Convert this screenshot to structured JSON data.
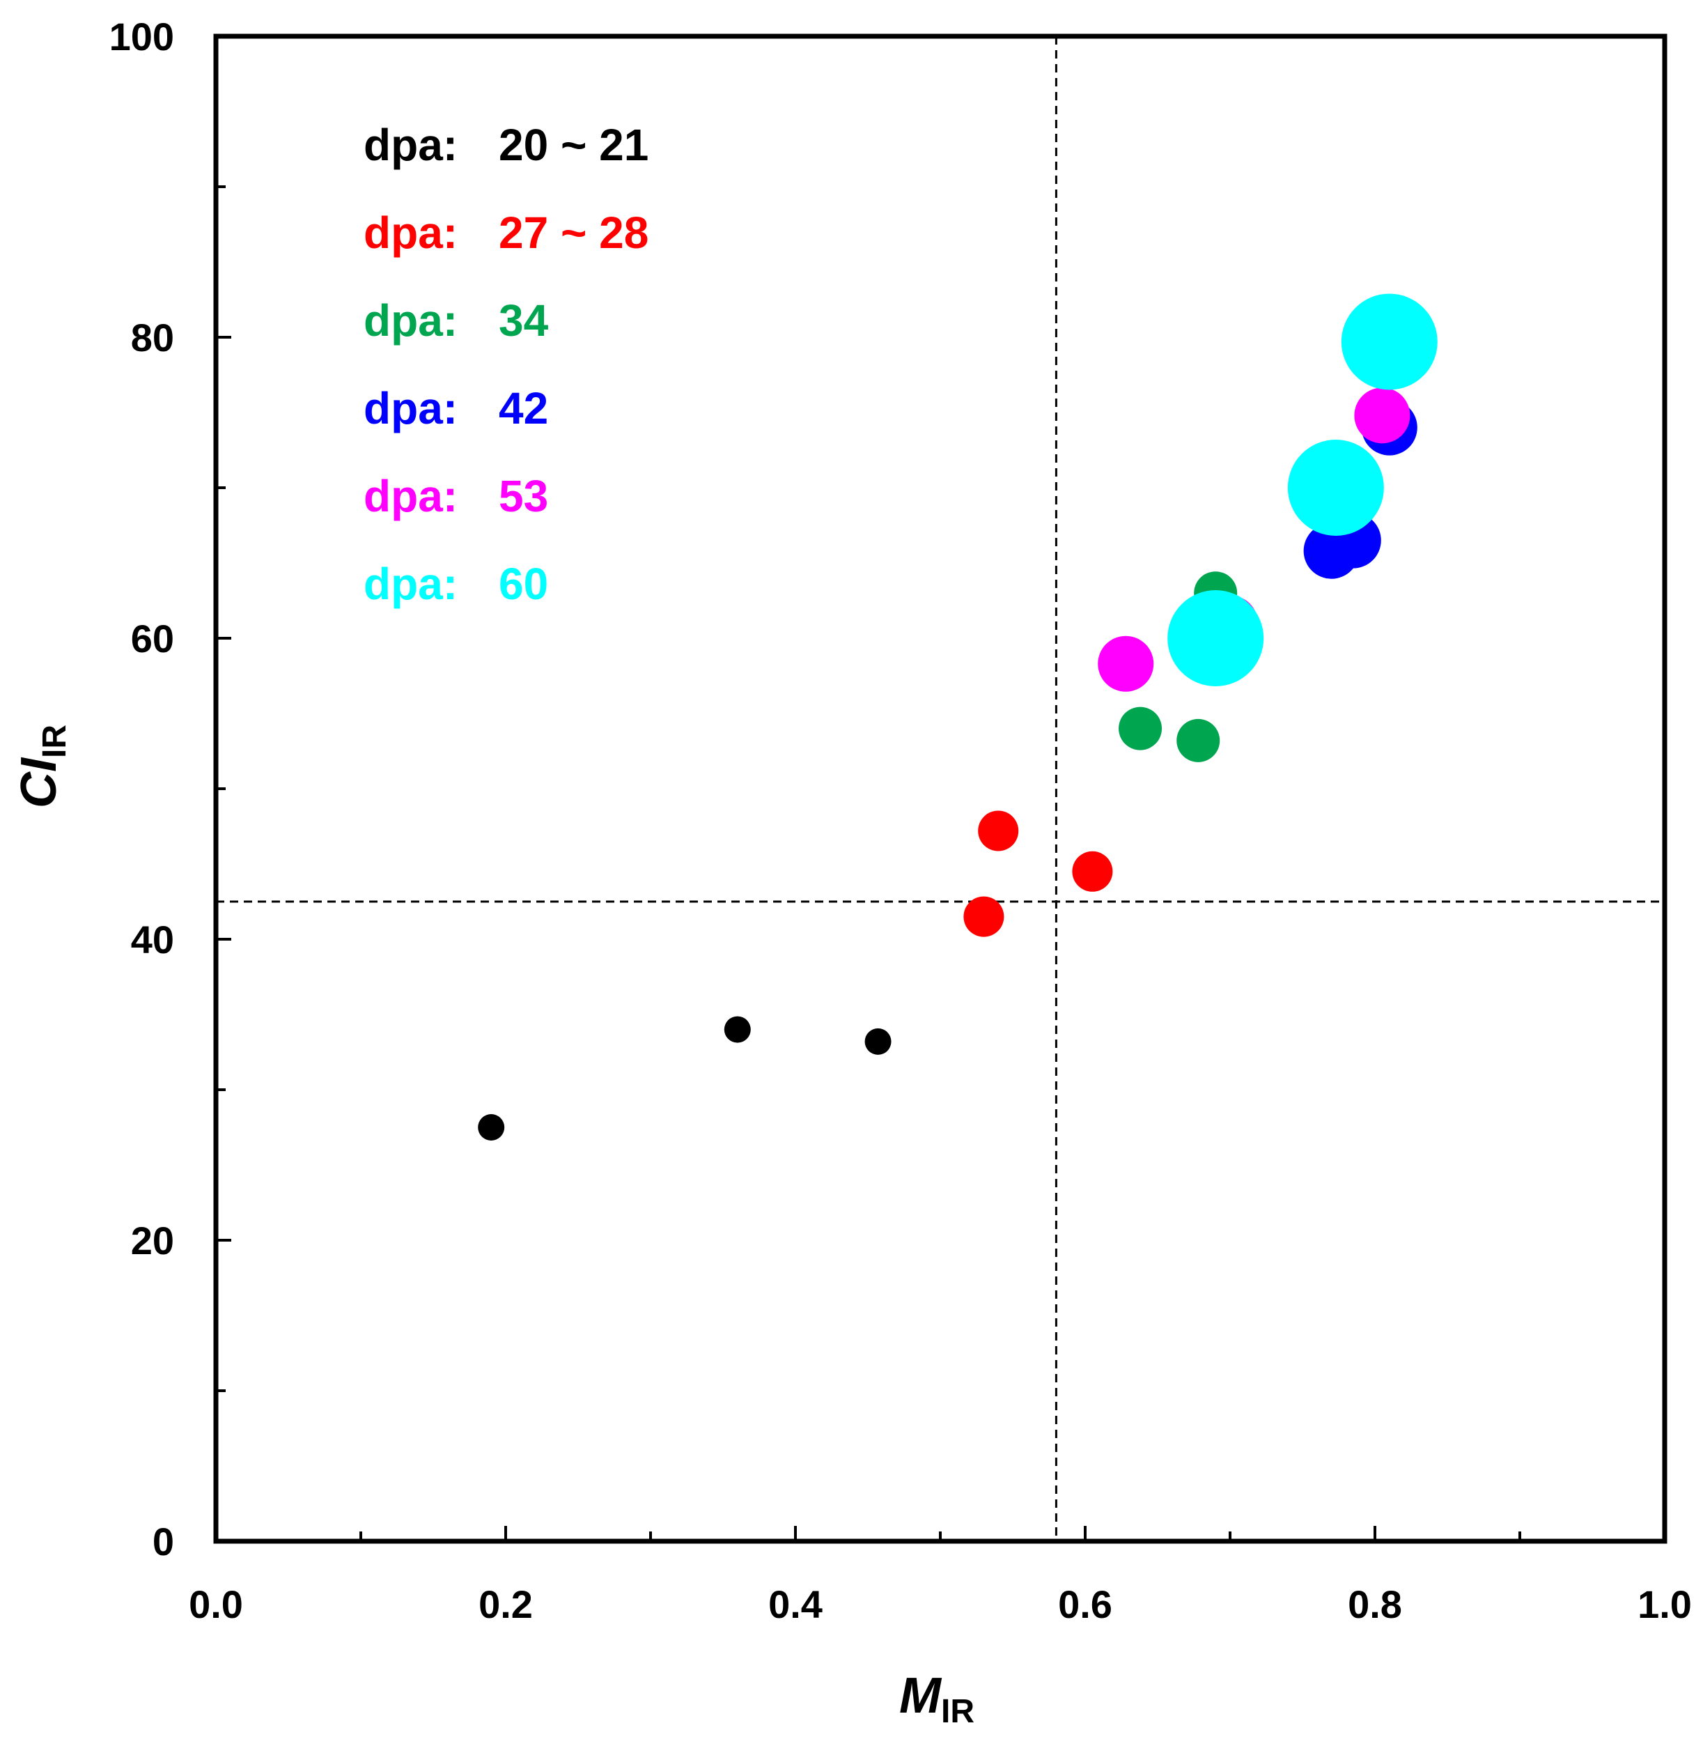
{
  "chart_data": {
    "type": "scatter",
    "title": "",
    "xlabel": {
      "main": "M",
      "sub": "IR"
    },
    "ylabel": {
      "main": "CI",
      "sub": "IR"
    },
    "xlim": [
      0.0,
      1.0
    ],
    "ylim": [
      0,
      100
    ],
    "x_ticks": [
      "0.0",
      "0.2",
      "0.4",
      "0.6",
      "0.8",
      "1.0"
    ],
    "y_ticks": [
      "0",
      "20",
      "40",
      "60",
      "80",
      "100"
    ],
    "grid": false,
    "legend_position": "top-left",
    "reference_lines": {
      "vertical_x": 0.58,
      "horizontal_y": 42.5
    },
    "series": [
      {
        "name": "dpa: 20 ~ 21",
        "label": "dpa:",
        "value_text": "20 ~ 21",
        "color": "#000000",
        "size": "small",
        "points": [
          {
            "x": 0.19,
            "y": 27.5
          },
          {
            "x": 0.36,
            "y": 34.0
          },
          {
            "x": 0.457,
            "y": 33.2
          }
        ]
      },
      {
        "name": "dpa: 27 ~ 28",
        "label": "dpa:",
        "value_text": "27 ~ 28",
        "color": "#ff0000",
        "size": "medium",
        "points": [
          {
            "x": 0.53,
            "y": 41.5
          },
          {
            "x": 0.54,
            "y": 47.2
          },
          {
            "x": 0.605,
            "y": 44.5
          }
        ]
      },
      {
        "name": "dpa: 34",
        "label": "dpa:",
        "value_text": "34",
        "color": "#00a550",
        "size": "medium-large",
        "points": [
          {
            "x": 0.638,
            "y": 54.0
          },
          {
            "x": 0.678,
            "y": 53.2
          },
          {
            "x": 0.69,
            "y": 63.0
          }
        ]
      },
      {
        "name": "dpa: 42",
        "label": "dpa:",
        "value_text": "42",
        "color": "#0000ff",
        "size": "large",
        "points": [
          {
            "x": 0.77,
            "y": 65.8
          },
          {
            "x": 0.785,
            "y": 66.5
          },
          {
            "x": 0.81,
            "y": 74.0
          }
        ]
      },
      {
        "name": "dpa: 53",
        "label": "dpa:",
        "value_text": "53",
        "color": "#ff00ff",
        "size": "large",
        "points": [
          {
            "x": 0.628,
            "y": 58.3
          },
          {
            "x": 0.7,
            "y": 61.0
          },
          {
            "x": 0.805,
            "y": 74.8
          }
        ]
      },
      {
        "name": "dpa: 60",
        "label": "dpa:",
        "value_text": "60",
        "color": "#00ffff",
        "size": "x-large",
        "points": [
          {
            "x": 0.69,
            "y": 60.0
          },
          {
            "x": 0.773,
            "y": 70.0
          },
          {
            "x": 0.81,
            "y": 79.7
          }
        ]
      }
    ]
  }
}
